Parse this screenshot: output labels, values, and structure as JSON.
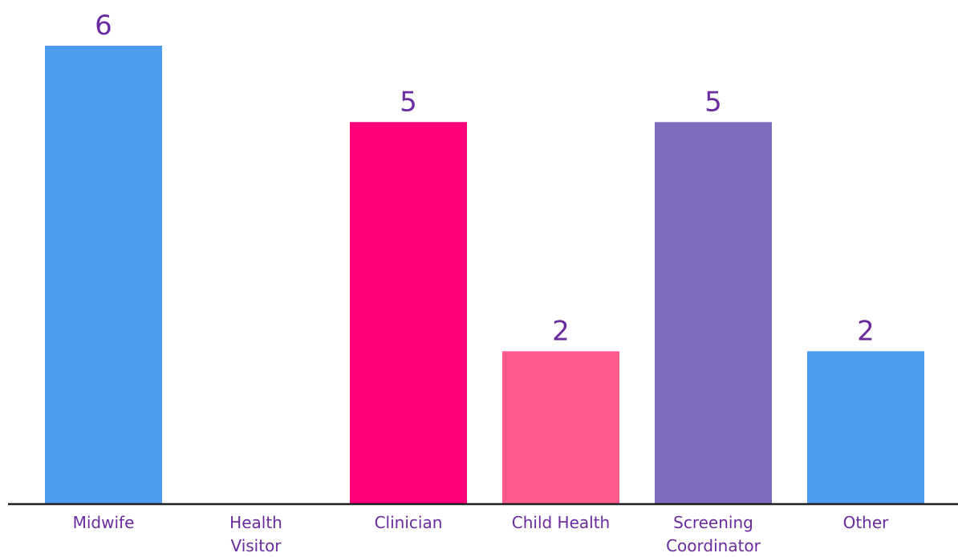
{
  "chart_data": {
    "type": "bar",
    "categories": [
      "Midwife",
      "Health Visitor",
      "Clinician",
      "Child Health",
      "Screening Coordinator",
      "Other"
    ],
    "category_lines": [
      [
        "Midwife"
      ],
      [
        "Health",
        "Visitor"
      ],
      [
        "Clinician"
      ],
      [
        "Child Health"
      ],
      [
        "Screening",
        "Coordinator"
      ],
      [
        "Other"
      ]
    ],
    "values": [
      6,
      0,
      5,
      2,
      5,
      2
    ],
    "data_labels": [
      "6",
      "",
      "5",
      "2",
      "5",
      "2"
    ],
    "bar_colors": [
      "#4d9bf0",
      "#4d9bf0",
      "#ff007a",
      "#ff5a8c",
      "#7f6bbd",
      "#4d9bf0"
    ],
    "label_color": "#6a2b9f",
    "axis_color": "#1f1f1f",
    "ylim": [
      0,
      6
    ],
    "grid": false,
    "legend": "none",
    "title": "",
    "xlabel": "",
    "ylabel": ""
  }
}
